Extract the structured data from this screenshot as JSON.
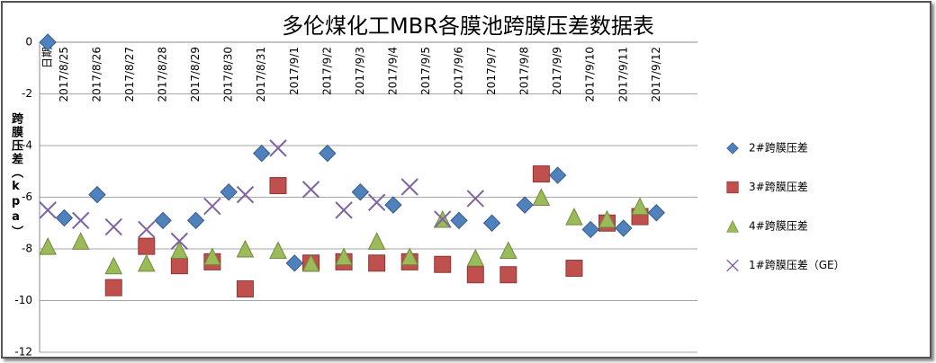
{
  "chart_data": {
    "type": "scatter",
    "title": "多伦煤化工MBR各膜池跨膜压差数据表",
    "y_label": "跨膜压差（kpa）",
    "categories": [
      "日期",
      "2017/8/25",
      null,
      "2017/8/26",
      null,
      "2017/8/27",
      null,
      "2017/8/28",
      null,
      "2017/8/29",
      null,
      "2017/8/30",
      null,
      "2017/8/31",
      null,
      "2017/9/1",
      null,
      "2017/9/2",
      null,
      "2017/9/3",
      null,
      "2017/9/4",
      null,
      "2017/9/5",
      null,
      "2017/9/6",
      null,
      "2017/9/7",
      null,
      "2017/9/8",
      null,
      "2017/9/9",
      null,
      "2017/9/10",
      null,
      "2017/9/11",
      null,
      "2017/9/12",
      null,
      null
    ],
    "series": [
      {
        "name": "2#跨膜压差",
        "color": "#4f81bd",
        "marker": "diamond",
        "values": [
          0,
          -6.8,
          null,
          -5.9,
          null,
          null,
          null,
          -6.9,
          null,
          -6.9,
          null,
          -5.8,
          null,
          -4.3,
          null,
          -8.55,
          null,
          -4.3,
          null,
          -5.8,
          null,
          -6.3,
          null,
          null,
          null,
          -6.9,
          null,
          -7.0,
          null,
          -6.3,
          null,
          -5.15,
          null,
          -7.25,
          null,
          -7.2,
          null,
          -6.6,
          null,
          null
        ]
      },
      {
        "name": "3#跨膜压差",
        "color": "#c0504d",
        "marker": "square",
        "values": [
          null,
          null,
          null,
          null,
          -9.5,
          null,
          -7.9,
          null,
          -8.65,
          null,
          -8.5,
          null,
          -9.55,
          null,
          -5.55,
          null,
          -8.55,
          null,
          -8.5,
          null,
          -8.55,
          null,
          -8.5,
          null,
          -8.6,
          null,
          -9.0,
          null,
          -9.0,
          null,
          -5.1,
          null,
          -8.75,
          null,
          -7.0,
          null,
          -6.75,
          null,
          null,
          null
        ]
      },
      {
        "name": "4#跨膜压差",
        "color": "#9bbb59",
        "marker": "triangle",
        "values": [
          -7.9,
          null,
          -7.7,
          null,
          -8.65,
          null,
          -8.55,
          null,
          -8.05,
          null,
          -8.3,
          null,
          -8.0,
          null,
          -8.05,
          null,
          -8.55,
          null,
          -8.3,
          null,
          -7.7,
          null,
          -8.3,
          null,
          -6.85,
          null,
          -8.35,
          null,
          -8.05,
          null,
          -6.0,
          null,
          -6.75,
          null,
          -6.85,
          null,
          -6.35,
          null,
          null,
          null
        ]
      },
      {
        "name": "1#跨膜压差（GE）",
        "color": "#8064a2",
        "marker": "x",
        "values": [
          -6.5,
          null,
          -6.9,
          null,
          -7.15,
          null,
          -7.25,
          null,
          -7.7,
          null,
          -6.35,
          null,
          -5.9,
          null,
          -4.1,
          null,
          -5.7,
          null,
          -6.5,
          null,
          -6.2,
          null,
          -5.6,
          null,
          -6.85,
          null,
          -6.05,
          null,
          null,
          null,
          null,
          null,
          null,
          null,
          null,
          null,
          null,
          null,
          null,
          null
        ]
      }
    ],
    "ylim": [
      -12,
      0
    ],
    "yticks": [
      0,
      -2,
      -4,
      -6,
      -8,
      -10,
      -12
    ],
    "grid": true,
    "legend": "right"
  }
}
